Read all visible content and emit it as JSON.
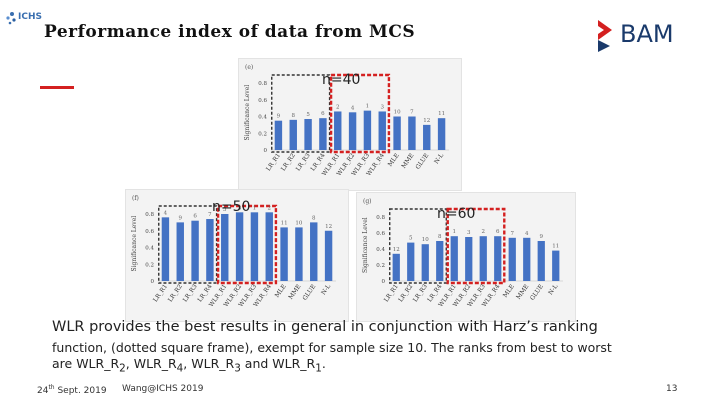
{
  "header": {
    "title": "Performance index of data from MCS",
    "ichs_logo_text": "ICHS",
    "bam_logo_text": "BAM"
  },
  "panels": [
    {
      "id": "e",
      "letter": "(e)",
      "n_label": "n=40",
      "categories": [
        "LR_R1",
        "LR_R2",
        "LR_R3",
        "LR_R4",
        "WLR_R1",
        "WLR_R2",
        "WLR_R3",
        "WLR_R4",
        "MLE",
        "MME",
        "GLUE",
        "N-L"
      ],
      "values": [
        0.35,
        0.36,
        0.37,
        0.38,
        0.46,
        0.45,
        0.47,
        0.46,
        0.4,
        0.4,
        0.3,
        0.38
      ],
      "ranks": [
        "9",
        "8",
        "5",
        "6",
        "2",
        "4",
        "1",
        "3",
        "10",
        "7",
        "12",
        "11"
      ],
      "ylabel": "Significance Level",
      "yticks": [
        "0",
        "0.2",
        "0.4",
        "0.6",
        "0.8"
      ],
      "ymax": 0.8
    },
    {
      "id": "f",
      "letter": "(f)",
      "n_label": "n=50",
      "categories": [
        "LR_R1",
        "LR_R2",
        "LR_R3",
        "LR_R4",
        "WLR_R1",
        "WLR_R2",
        "WLR_R3",
        "WLR_R4",
        "MLE",
        "MME",
        "GLUE",
        "N-L"
      ],
      "values": [
        0.76,
        0.7,
        0.72,
        0.74,
        0.8,
        0.82,
        0.82,
        0.82,
        0.64,
        0.64,
        0.7,
        0.6
      ],
      "ranks": [
        "4",
        "9",
        "6",
        "7",
        "5",
        "3",
        "1",
        "2",
        "11",
        "10",
        "8",
        "12"
      ],
      "ylabel": "Significance Level",
      "yticks": [
        "0",
        "0.2",
        "0.4",
        "0.6",
        "0.8"
      ],
      "ymax": 0.8
    },
    {
      "id": "g",
      "letter": "(g)",
      "n_label": "n=60",
      "categories": [
        "LR_R1",
        "LR_R2",
        "LR_R3",
        "LR_R4",
        "WLR_R1",
        "WLR_R2",
        "WLR_R3",
        "WLR_R4",
        "MLE",
        "MME",
        "GLUE",
        "N-L"
      ],
      "values": [
        0.34,
        0.48,
        0.46,
        0.5,
        0.56,
        0.55,
        0.56,
        0.56,
        0.54,
        0.54,
        0.5,
        0.38
      ],
      "ranks": [
        "12",
        "5",
        "10",
        "8",
        "1",
        "3",
        "2",
        "6",
        "7",
        "4",
        "9",
        "11"
      ],
      "ylabel": "Significance Level",
      "yticks": [
        "0",
        "0.2",
        "0.4",
        "0.6",
        "0.8"
      ],
      "ymax": 0.8
    }
  ],
  "body": {
    "line1": "WLR provides the best results in general in conjunction with Harz’s ranking",
    "line2_a": "function, (dotted square frame), exempt for sample size 10. The ranks from best to worst",
    "line2_b_prefix": "are WLR_R",
    "s1": "2",
    "sep1": ", WLR_R",
    "s2": "4",
    "sep2": ", WLR_R",
    "s3": "3",
    "sep3": " and WLR_R",
    "s4": "1",
    "end": "."
  },
  "footer": {
    "date_day": "24",
    "date_sup": "th",
    "date_rest": " Sept. 2019",
    "center": "Wang@ICHS 2019",
    "page": "13"
  },
  "colors": {
    "bar": "#4472c4",
    "red_frame": "#d42020",
    "black_frame": "#333333",
    "accent": "#d42020"
  }
}
